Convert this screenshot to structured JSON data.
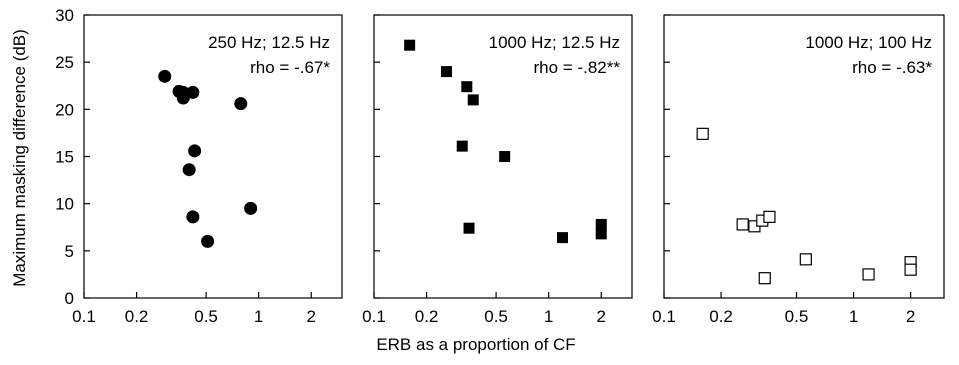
{
  "figure": {
    "xlabel": "ERB as a proportion of CF",
    "ylabel": "Maximum masking difference (dB)"
  },
  "chart_data": [
    {
      "type": "scatter",
      "xscale": "log",
      "xlim": [
        0.1,
        3
      ],
      "ylim": [
        0,
        30
      ],
      "xticks": [
        0.1,
        0.2,
        0.5,
        1,
        2
      ],
      "xtick_labels": [
        "0.1",
        "0.2",
        "0.5",
        "1",
        "2"
      ],
      "yticks": [
        0,
        5,
        10,
        15,
        20,
        25,
        30
      ],
      "ytick_labels": [
        "0",
        "5",
        "10",
        "15",
        "20",
        "25",
        "30"
      ],
      "annotation": [
        "250 Hz; 12.5 Hz",
        "rho = -.67*"
      ],
      "marker": "filled-circle",
      "color": "#000000",
      "points": [
        {
          "x": 0.29,
          "y": 23.5
        },
        {
          "x": 0.35,
          "y": 21.9
        },
        {
          "x": 0.37,
          "y": 21.8
        },
        {
          "x": 0.37,
          "y": 21.2
        },
        {
          "x": 0.42,
          "y": 21.8
        },
        {
          "x": 0.79,
          "y": 20.6
        },
        {
          "x": 0.43,
          "y": 15.6
        },
        {
          "x": 0.4,
          "y": 13.6
        },
        {
          "x": 0.42,
          "y": 8.6
        },
        {
          "x": 0.9,
          "y": 9.5
        },
        {
          "x": 0.51,
          "y": 6.0
        }
      ]
    },
    {
      "type": "scatter",
      "xscale": "log",
      "xlim": [
        0.1,
        3
      ],
      "ylim": [
        0,
        30
      ],
      "xticks": [
        0.1,
        0.2,
        0.5,
        1,
        2
      ],
      "xtick_labels": [
        "0.1",
        "0.2",
        "0.5",
        "1",
        "2"
      ],
      "annotation": [
        "1000 Hz; 12.5 Hz",
        "rho = -.82**"
      ],
      "marker": "filled-square",
      "color": "#000000",
      "points": [
        {
          "x": 0.16,
          "y": 26.8
        },
        {
          "x": 0.26,
          "y": 24.0
        },
        {
          "x": 0.34,
          "y": 22.4
        },
        {
          "x": 0.37,
          "y": 21.0
        },
        {
          "x": 0.32,
          "y": 16.1
        },
        {
          "x": 0.56,
          "y": 15.0
        },
        {
          "x": 0.35,
          "y": 7.4
        },
        {
          "x": 1.2,
          "y": 6.4
        },
        {
          "x": 2.0,
          "y": 7.8
        },
        {
          "x": 2.0,
          "y": 6.8
        }
      ]
    },
    {
      "type": "scatter",
      "xscale": "log",
      "xlim": [
        0.1,
        3
      ],
      "ylim": [
        0,
        30
      ],
      "xticks": [
        0.1,
        0.2,
        0.5,
        1,
        2
      ],
      "xtick_labels": [
        "0.1",
        "0.2",
        "0.5",
        "1",
        "2"
      ],
      "annotation": [
        "1000 Hz; 100 Hz",
        "rho = -.63*"
      ],
      "marker": "open-square",
      "color": "#000000",
      "points": [
        {
          "x": 0.16,
          "y": 17.4
        },
        {
          "x": 0.26,
          "y": 7.8
        },
        {
          "x": 0.3,
          "y": 7.6
        },
        {
          "x": 0.33,
          "y": 8.2
        },
        {
          "x": 0.36,
          "y": 8.6
        },
        {
          "x": 0.34,
          "y": 2.1
        },
        {
          "x": 0.56,
          "y": 4.1
        },
        {
          "x": 1.2,
          "y": 2.5
        },
        {
          "x": 2.0,
          "y": 3.8
        },
        {
          "x": 2.0,
          "y": 3.0
        }
      ]
    }
  ]
}
